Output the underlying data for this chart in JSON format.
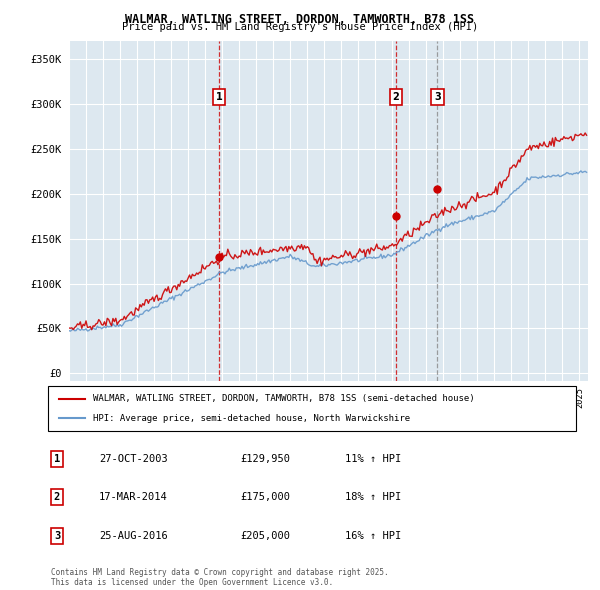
{
  "title": "WALMAR, WATLING STREET, DORDON, TAMWORTH, B78 1SS",
  "subtitle": "Price paid vs. HM Land Registry's House Price Index (HPI)",
  "ylim": [
    0,
    370000
  ],
  "yticks": [
    0,
    50000,
    100000,
    150000,
    200000,
    250000,
    300000,
    350000
  ],
  "legend_line1": "WALMAR, WATLING STREET, DORDON, TAMWORTH, B78 1SS (semi-detached house)",
  "legend_line2": "HPI: Average price, semi-detached house, North Warwickshire",
  "sale1_label": "1",
  "sale1_date": "27-OCT-2003",
  "sale1_price": "£129,950",
  "sale1_hpi": "11% ↑ HPI",
  "sale1_x": 2003.82,
  "sale1_y": 129950,
  "sale2_label": "2",
  "sale2_date": "17-MAR-2014",
  "sale2_price": "£175,000",
  "sale2_hpi": "18% ↑ HPI",
  "sale2_x": 2014.21,
  "sale2_y": 175000,
  "sale3_label": "3",
  "sale3_date": "25-AUG-2016",
  "sale3_price": "£205,000",
  "sale3_hpi": "16% ↑ HPI",
  "sale3_x": 2016.65,
  "sale3_y": 205000,
  "red_color": "#cc0000",
  "blue_color": "#6699cc",
  "vline_color_red": "#cc0000",
  "vline_color_gray": "#888888",
  "background_color": "#dde8f0",
  "grid_color": "#ffffff",
  "footnote": "Contains HM Land Registry data © Crown copyright and database right 2025.\nThis data is licensed under the Open Government Licence v3.0.",
  "xmin": 1995,
  "xmax": 2025.5
}
